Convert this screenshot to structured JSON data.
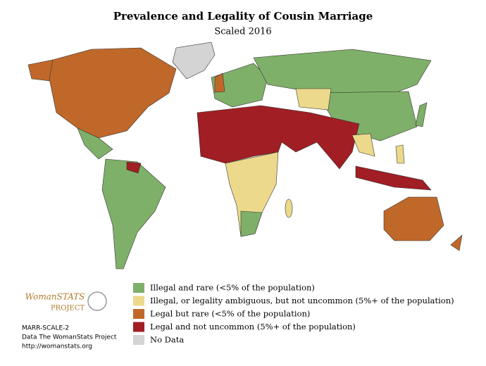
{
  "header": {
    "title": "Prevalence and Legality of Cousin Marriage",
    "subtitle": "Scaled 2016"
  },
  "legend": {
    "items": [
      {
        "label": "Illegal and rare (<5% of the population)",
        "color": "#7fb069"
      },
      {
        "label": "Illegal, or legality ambiguous, but not uncommon (5%+ of the population)",
        "color": "#ecd98b"
      },
      {
        "label": "Legal but rare (<5% of the population)",
        "color": "#c0682a"
      },
      {
        "label": "Legal and not uncommon (5%+ of the population)",
        "color": "#a01e24"
      },
      {
        "label": "No Data",
        "color": "#d4d4d4"
      }
    ]
  },
  "logo": {
    "text": "WomanSTATS",
    "subtext": "PROJECT"
  },
  "footer": {
    "lines": [
      "MARR-SCALE-2",
      "Data The WomanStats Project",
      "http://womanstats.org"
    ]
  }
}
